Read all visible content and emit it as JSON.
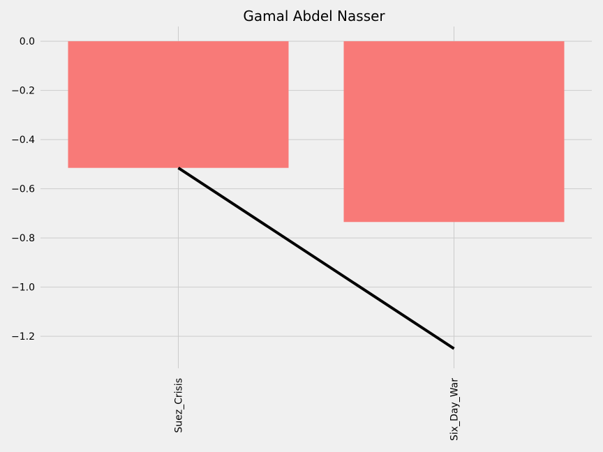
{
  "chart_data": {
    "type": "bar",
    "title": "Gamal Abdel Nasser",
    "categories": [
      "Suez_Crisis",
      "Six_Day_War"
    ],
    "series": [
      {
        "type": "bar",
        "values": [
          -0.515,
          -0.735
        ]
      },
      {
        "type": "line",
        "values": [
          -0.515,
          -1.25
        ]
      }
    ],
    "ylim": [
      -1.33,
      0.06
    ],
    "yticks": [
      0.0,
      -0.2,
      -0.4,
      -0.6,
      -0.8,
      -1.0,
      -1.2
    ],
    "ytick_labels": [
      "0.0",
      "−0.2",
      "−0.4",
      "−0.6",
      "−0.8",
      "−1.0",
      "−1.2"
    ],
    "grid": true,
    "colors": {
      "bar": "#f87a78",
      "line": "#000000",
      "background": "#f0f0f0",
      "grid": "#cbcbcb"
    }
  }
}
